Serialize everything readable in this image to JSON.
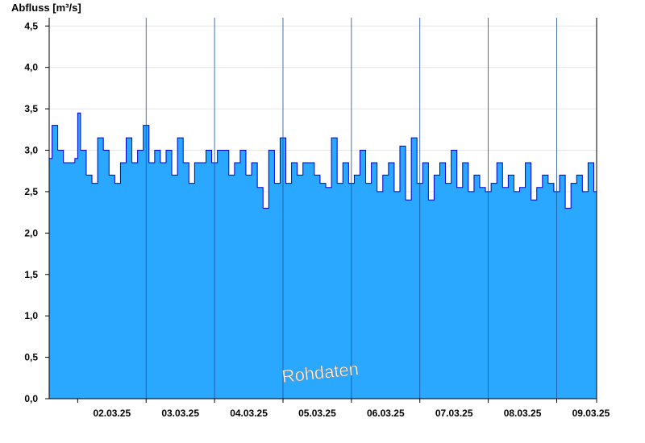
{
  "chart_data": {
    "type": "area",
    "ylabel": "Abfluss [m³/s]",
    "ylim": [
      0,
      4.6
    ],
    "yticks": [
      0,
      0.5,
      1.0,
      1.5,
      2.0,
      2.5,
      3.0,
      3.5,
      4.0,
      4.5
    ],
    "ytick_labels": [
      "0,0",
      "0,5",
      "1,0",
      "1,5",
      "2,0",
      "2,5",
      "3,0",
      "3,5",
      "4,0",
      "4,5"
    ],
    "x_start": "2025-03-01T14:00",
    "x_end": "2025-03-09T14:00",
    "day_labels": [
      "02.03.25",
      "03.03.25",
      "04.03.25",
      "05.03.25",
      "06.03.25",
      "07.03.25",
      "08.03.25",
      "09.03.25"
    ],
    "grid": "horizontal",
    "fill_color": "#2aa8ff",
    "line_color": "#0000cc",
    "watermark": "Rohdaten",
    "series": [
      {
        "x": [
          "2025-03-01T14:00",
          "2025-03-01T15:00",
          "2025-03-01T17:00",
          "2025-03-01T19:00",
          "2025-03-01T21:00",
          "2025-03-01T23:00",
          "2025-03-02T00:00",
          "2025-03-02T01:00",
          "2025-03-02T03:00",
          "2025-03-02T05:00",
          "2025-03-02T07:00",
          "2025-03-02T09:00",
          "2025-03-02T11:00",
          "2025-03-02T13:00",
          "2025-03-02T15:00",
          "2025-03-02T17:00",
          "2025-03-02T19:00",
          "2025-03-02T21:00",
          "2025-03-02T23:00",
          "2025-03-03T01:00",
          "2025-03-03T03:00",
          "2025-03-03T05:00",
          "2025-03-03T07:00",
          "2025-03-03T09:00",
          "2025-03-03T11:00",
          "2025-03-03T13:00",
          "2025-03-03T15:00",
          "2025-03-03T17:00",
          "2025-03-03T19:00",
          "2025-03-03T21:00",
          "2025-03-03T23:00",
          "2025-03-04T01:00",
          "2025-03-04T03:00",
          "2025-03-04T05:00",
          "2025-03-04T07:00",
          "2025-03-04T09:00",
          "2025-03-04T11:00",
          "2025-03-04T13:00",
          "2025-03-04T15:00",
          "2025-03-04T17:00",
          "2025-03-04T19:00",
          "2025-03-04T21:00",
          "2025-03-04T23:00",
          "2025-03-05T01:00",
          "2025-03-05T03:00",
          "2025-03-05T05:00",
          "2025-03-05T07:00",
          "2025-03-05T09:00",
          "2025-03-05T11:00",
          "2025-03-05T13:00",
          "2025-03-05T15:00",
          "2025-03-05T17:00",
          "2025-03-05T19:00",
          "2025-03-05T21:00",
          "2025-03-05T23:00",
          "2025-03-06T01:00",
          "2025-03-06T03:00",
          "2025-03-06T05:00",
          "2025-03-06T07:00",
          "2025-03-06T09:00",
          "2025-03-06T11:00",
          "2025-03-06T13:00",
          "2025-03-06T15:00",
          "2025-03-06T17:00",
          "2025-03-06T19:00",
          "2025-03-06T21:00",
          "2025-03-06T23:00",
          "2025-03-07T01:00",
          "2025-03-07T03:00",
          "2025-03-07T05:00",
          "2025-03-07T07:00",
          "2025-03-07T09:00",
          "2025-03-07T11:00",
          "2025-03-07T13:00",
          "2025-03-07T15:00",
          "2025-03-07T17:00",
          "2025-03-07T19:00",
          "2025-03-07T21:00",
          "2025-03-07T23:00",
          "2025-03-08T01:00",
          "2025-03-08T03:00",
          "2025-03-08T05:00",
          "2025-03-08T07:00",
          "2025-03-08T09:00",
          "2025-03-08T11:00",
          "2025-03-08T13:00",
          "2025-03-08T15:00",
          "2025-03-08T17:00",
          "2025-03-08T19:00",
          "2025-03-08T21:00",
          "2025-03-08T23:00",
          "2025-03-09T01:00",
          "2025-03-09T03:00",
          "2025-03-09T05:00",
          "2025-03-09T07:00",
          "2025-03-09T09:00",
          "2025-03-09T11:00",
          "2025-03-09T13:00",
          "2025-03-09T14:00"
        ],
        "y": [
          2.9,
          3.3,
          3.0,
          2.85,
          2.85,
          2.9,
          3.45,
          3.0,
          2.7,
          2.6,
          3.15,
          3.0,
          2.7,
          2.6,
          2.85,
          3.15,
          2.85,
          3.0,
          3.3,
          2.85,
          3.0,
          2.85,
          3.0,
          2.7,
          3.15,
          2.85,
          2.6,
          2.85,
          2.85,
          3.0,
          2.85,
          3.0,
          3.0,
          2.7,
          2.85,
          3.0,
          2.7,
          2.85,
          2.55,
          2.3,
          3.0,
          2.6,
          3.15,
          2.6,
          2.85,
          2.7,
          2.85,
          2.85,
          2.7,
          2.6,
          2.55,
          3.15,
          2.6,
          2.85,
          2.6,
          2.7,
          3.0,
          2.6,
          2.85,
          2.5,
          2.7,
          2.85,
          2.5,
          3.05,
          2.4,
          3.15,
          2.6,
          2.85,
          2.4,
          2.7,
          2.85,
          2.6,
          3.0,
          2.55,
          2.85,
          2.5,
          2.7,
          2.55,
          2.5,
          2.6,
          2.85,
          2.55,
          2.7,
          2.5,
          2.55,
          2.85,
          2.4,
          2.55,
          2.7,
          2.6,
          2.5,
          2.7,
          2.3,
          2.6,
          2.7,
          2.5,
          2.85,
          2.5,
          2.7
        ]
      }
    ]
  }
}
